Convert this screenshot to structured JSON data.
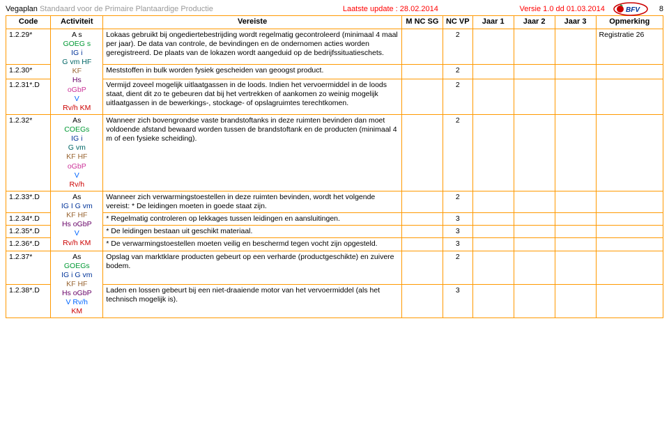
{
  "header": {
    "title_prefix": "Vegaplan",
    "title_rest": "Standaard voor de Primaire Plantaardige Productie",
    "last_update_label": "Laatste update : 28.02.2014",
    "version": "Versie 1.0 dd 01.03.2014",
    "page_number": "8",
    "logo_text": "BFV"
  },
  "columns": {
    "code": "Code",
    "activity": "Activiteit",
    "requirement": "Vereiste",
    "mncsg": "M NC SG",
    "ncvp": "NC VP",
    "year1": "Jaar 1",
    "year2": "Jaar 2",
    "year3": "Jaar 3",
    "remark": "Opmerking"
  },
  "rows": [
    {
      "code": "1.2.29*",
      "activity_rowspan": 3,
      "activity_lines": [
        {
          "text": "A s",
          "cls": "c-black"
        },
        {
          "text": "GOEG s",
          "cls": "c-green"
        },
        {
          "text": "IG i",
          "cls": "c-navy"
        },
        {
          "text": "G vm HF",
          "cls": "c-teal"
        },
        {
          "text": "KF",
          "cls": "c-brown"
        },
        {
          "text": "Hs",
          "cls": "c-purple"
        },
        {
          "text": "oGbP",
          "cls": "c-pink"
        },
        {
          "text": "V",
          "cls": "c-blue"
        },
        {
          "text": "Rv/h KM",
          "cls": "c-red"
        }
      ],
      "requirement": "Lokaas gebruikt bij ongediertebestrijding wordt regelmatig gecontroleerd (minimaal 4 maal per jaar). De data van controle, de bevindingen en de ondernomen acties worden geregistreerd. De plaats van de lokazen wordt aangeduid op de bedrijfssituatieschets.",
      "mncsg": "",
      "ncvp": "2",
      "year1": "",
      "year2": "",
      "year3": "",
      "remark": "Registratie 26"
    },
    {
      "code": "1.2.30*",
      "requirement": "Meststoffen in bulk worden fysiek gescheiden van geoogst product.",
      "mncsg": "",
      "ncvp": "2",
      "year1": "",
      "year2": "",
      "year3": "",
      "remark": ""
    },
    {
      "code": "1.2.31*.D",
      "requirement": "Vermijd zoveel mogelijk uitlaatgassen in de loods. Indien het vervoermiddel in de loods staat, dient dit zo te gebeuren dat bij het vertrekken of aankomen zo weinig mogelijk uitlaatgassen in de bewerkings-, stockage- of opslagruimtes terechtkomen.",
      "mncsg": "",
      "ncvp": "2",
      "year1": "",
      "year2": "",
      "year3": "",
      "remark": ""
    },
    {
      "code": "1.2.32*",
      "activity_rowspan": 1,
      "activity_lines": [
        {
          "text": "As",
          "cls": "c-black"
        },
        {
          "text": "COEGs",
          "cls": "c-green"
        },
        {
          "text": "IG i",
          "cls": "c-navy"
        },
        {
          "text": "G vm",
          "cls": "c-teal"
        },
        {
          "text": "KF HF",
          "cls": "c-brown"
        },
        {
          "text": "oGbP",
          "cls": "c-pink"
        },
        {
          "text": "V",
          "cls": "c-blue"
        },
        {
          "text": "Rv/h",
          "cls": "c-red"
        }
      ],
      "requirement": "Wanneer zich bovengrondse vaste brandstoftanks in deze ruimten bevinden dan moet voldoende afstand bewaard worden tussen de brandstoftank en de producten (minimaal 4 m of een fysieke scheiding).",
      "mncsg": "",
      "ncvp": "2",
      "year1": "",
      "year2": "",
      "year3": "",
      "remark": ""
    },
    {
      "code": "1.2.33*.D",
      "activity_rowspan": 4,
      "activity_lines": [
        {
          "text": "As",
          "cls": "c-black"
        },
        {
          "text": "IG I G vm",
          "cls": "c-navy"
        },
        {
          "text": "KF HF",
          "cls": "c-brown"
        },
        {
          "text": "Hs oGbP",
          "cls": "c-purple"
        },
        {
          "text": "V",
          "cls": "c-blue"
        },
        {
          "text": "Rv/h KM",
          "cls": "c-red"
        }
      ],
      "requirement": "Wanneer zich verwarmingstoestellen in deze ruimten bevinden, wordt het volgende vereist:\n* De leidingen moeten in goede staat zijn.",
      "mncsg": "",
      "ncvp": "2",
      "year1": "",
      "year2": "",
      "year3": "",
      "remark": ""
    },
    {
      "code": "1.2.34*.D",
      "requirement": "* Regelmatig controleren op lekkages tussen leidingen en aansluitingen.",
      "mncsg": "",
      "ncvp": "3",
      "year1": "",
      "year2": "",
      "year3": "",
      "remark": ""
    },
    {
      "code": "1.2.35*.D",
      "requirement": "* De leidingen bestaan uit geschikt materiaal.",
      "mncsg": "",
      "ncvp": "3",
      "year1": "",
      "year2": "",
      "year3": "",
      "remark": ""
    },
    {
      "code": "1.2.36*.D",
      "requirement": "* De verwarmingstoestellen moeten veilig en beschermd tegen vocht zijn opgesteld.",
      "mncsg": "",
      "ncvp": "3",
      "year1": "",
      "year2": "",
      "year3": "",
      "remark": ""
    },
    {
      "code": "1.2.37*",
      "activity_rowspan": 2,
      "activity_lines": [
        {
          "text": "As",
          "cls": "c-black"
        },
        {
          "text": "GOEGs",
          "cls": "c-green"
        },
        {
          "text": "IG i G vm",
          "cls": "c-navy"
        },
        {
          "text": "KF HF",
          "cls": "c-brown"
        },
        {
          "text": "Hs oGbP",
          "cls": "c-purple"
        },
        {
          "text": "V Rv/h",
          "cls": "c-blue"
        },
        {
          "text": "KM",
          "cls": "c-red"
        }
      ],
      "requirement": "Opslag van marktklare producten gebeurt op een verharde (productgeschikte) en zuivere bodem.",
      "mncsg": "",
      "ncvp": "2",
      "year1": "",
      "year2": "",
      "year3": "",
      "remark": ""
    },
    {
      "code": "1.2.38*.D",
      "requirement": "Laden en lossen gebeurt bij een niet-draaiende motor van het vervoermiddel (als het technisch mogelijk is).",
      "mncsg": "",
      "ncvp": "3",
      "year1": "",
      "year2": "",
      "year3": "",
      "remark": ""
    }
  ]
}
